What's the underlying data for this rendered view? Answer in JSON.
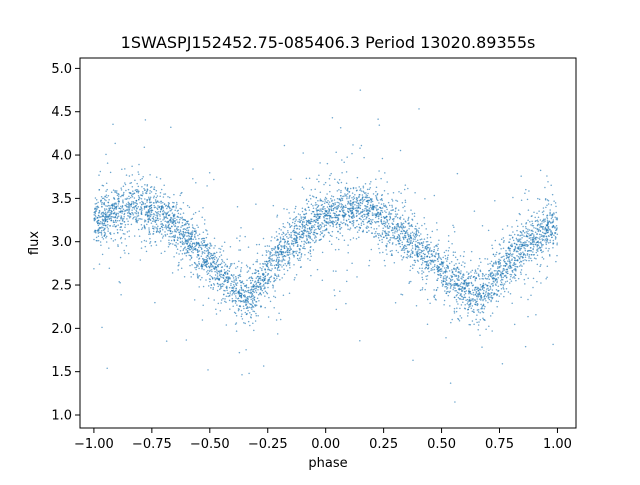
{
  "chart_data": {
    "type": "scatter",
    "title": "1SWASPJ152452.75-085406.3 Period 13020.89355s",
    "xlabel": "phase",
    "ylabel": "flux",
    "xlim": [
      -1.06,
      1.08
    ],
    "ylim": [
      0.85,
      5.12
    ],
    "x_ticks": [
      -1.0,
      -0.75,
      -0.5,
      -0.25,
      0.0,
      0.25,
      0.5,
      0.75,
      1.0
    ],
    "x_tick_labels": [
      "−1.00",
      "−0.75",
      "−0.50",
      "−0.25",
      "0.00",
      "0.25",
      "0.50",
      "0.75",
      "1.00"
    ],
    "y_ticks": [
      1.0,
      1.5,
      2.0,
      2.5,
      3.0,
      3.5,
      4.0,
      4.5,
      5.0
    ],
    "y_tick_labels": [
      "1.0",
      "1.5",
      "2.0",
      "2.5",
      "3.0",
      "3.5",
      "4.0",
      "4.5",
      "5.0"
    ],
    "grid": false,
    "marker_color": "#1f77b4",
    "series": [
      {
        "phase": [
          -1.0,
          -0.95,
          -0.9,
          -0.85,
          -0.8,
          -0.75,
          -0.7,
          -0.65,
          -0.6,
          -0.55,
          -0.5,
          -0.45,
          -0.4,
          -0.35,
          -0.33,
          -0.3,
          -0.25,
          -0.2,
          -0.15,
          -0.1,
          -0.05,
          0.0,
          0.05,
          0.1,
          0.15,
          0.2,
          0.25,
          0.3,
          0.35,
          0.4,
          0.45,
          0.5,
          0.55,
          0.6,
          0.65,
          0.67,
          0.7,
          0.75,
          0.8,
          0.85,
          0.9,
          0.95,
          1.0
        ],
        "flux_median": [
          3.22,
          3.3,
          3.36,
          3.39,
          3.4,
          3.37,
          3.3,
          3.2,
          3.05,
          2.9,
          2.75,
          2.6,
          2.48,
          2.4,
          2.38,
          2.45,
          2.65,
          2.85,
          3.0,
          3.12,
          3.22,
          3.28,
          3.33,
          3.36,
          3.37,
          3.35,
          3.28,
          3.18,
          3.05,
          2.92,
          2.78,
          2.65,
          2.52,
          2.43,
          2.38,
          2.37,
          2.45,
          2.62,
          2.8,
          2.95,
          3.05,
          3.13,
          3.2
        ],
        "scatter_sigma": 0.13,
        "points_min": 1.05,
        "points_max": 4.95
      }
    ]
  }
}
